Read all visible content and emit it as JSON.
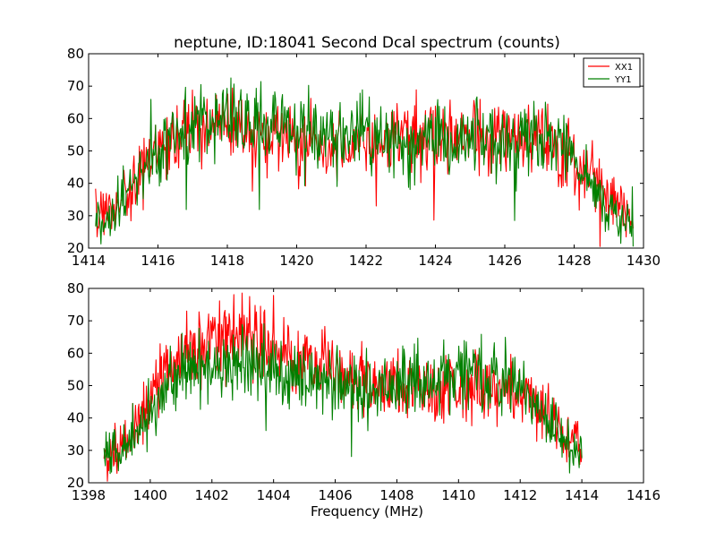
{
  "title": "neptune, ID:18041 Second Dcal spectrum (counts)",
  "chart_data": [
    {
      "type": "line",
      "title": "neptune, ID:18041 Second Dcal spectrum (counts)",
      "xlabel": "",
      "ylabel": "",
      "xlim": [
        1414,
        1430
      ],
      "ylim": [
        20,
        80
      ],
      "x_ticks": [
        "1414",
        "1416",
        "1418",
        "1420",
        "1422",
        "1424",
        "1426",
        "1428",
        "1430"
      ],
      "y_ticks": [
        "20",
        "30",
        "40",
        "50",
        "60",
        "70",
        "80"
      ],
      "x_range": [
        1414.2,
        1429.7
      ],
      "grid": false,
      "legend": "top-right",
      "series": [
        {
          "name": "XX1",
          "color": "#ff0000",
          "x": [
            1414.2,
            1414.5,
            1415.0,
            1415.5,
            1416.0,
            1416.5,
            1417.0,
            1417.5,
            1418.0,
            1418.5,
            1419.0,
            1419.5,
            1420.0,
            1420.5,
            1421.0,
            1421.5,
            1422.0,
            1422.5,
            1423.0,
            1423.5,
            1424.0,
            1424.5,
            1425.0,
            1425.5,
            1426.0,
            1426.5,
            1427.0,
            1427.5,
            1428.0,
            1428.5,
            1429.0,
            1429.5,
            1429.7
          ],
          "values": [
            30,
            31,
            36,
            43,
            50,
            53,
            56,
            57,
            57,
            56,
            55,
            54,
            54,
            53,
            53,
            53,
            53,
            53,
            54,
            54,
            54,
            54,
            54,
            54,
            54,
            54,
            55,
            53,
            48,
            42,
            35,
            30,
            29
          ]
        },
        {
          "name": "YY1",
          "color": "#008000",
          "x": [
            1414.2,
            1414.5,
            1415.0,
            1415.5,
            1416.0,
            1416.5,
            1417.0,
            1417.5,
            1418.0,
            1418.5,
            1419.0,
            1419.5,
            1420.0,
            1420.5,
            1421.0,
            1421.5,
            1422.0,
            1422.5,
            1423.0,
            1423.5,
            1424.0,
            1424.5,
            1425.0,
            1425.5,
            1426.0,
            1426.5,
            1427.0,
            1427.5,
            1428.0,
            1428.5,
            1429.0,
            1429.5,
            1429.7
          ],
          "values": [
            28,
            29,
            35,
            42,
            49,
            55,
            58,
            59,
            60,
            60,
            59,
            58,
            57,
            56,
            55,
            55,
            55,
            54,
            54,
            54,
            54,
            54,
            54,
            54,
            54,
            53,
            53,
            51,
            46,
            39,
            32,
            27,
            26
          ]
        }
      ]
    },
    {
      "type": "line",
      "title": "",
      "xlabel": "Frequency (MHz)",
      "ylabel": "",
      "xlim": [
        1398,
        1416
      ],
      "ylim": [
        20,
        80
      ],
      "x_ticks": [
        "1398",
        "1400",
        "1402",
        "1404",
        "1406",
        "1408",
        "1410",
        "1412",
        "1414",
        "1416"
      ],
      "y_ticks": [
        "20",
        "30",
        "40",
        "50",
        "60",
        "70",
        "80"
      ],
      "x_range": [
        1398.5,
        1414.0
      ],
      "grid": false,
      "legend": "none",
      "series": [
        {
          "name": "XX1",
          "color": "#ff0000",
          "x": [
            1398.5,
            1399.0,
            1399.5,
            1400.0,
            1400.5,
            1401.0,
            1401.5,
            1402.0,
            1402.5,
            1403.0,
            1403.5,
            1404.0,
            1404.5,
            1405.0,
            1405.5,
            1406.0,
            1406.5,
            1407.0,
            1407.5,
            1408.0,
            1408.5,
            1409.0,
            1409.5,
            1410.0,
            1410.5,
            1411.0,
            1411.5,
            1412.0,
            1412.5,
            1413.0,
            1413.5,
            1414.0
          ],
          "values": [
            30,
            32,
            37,
            45,
            55,
            60,
            62,
            63,
            64,
            64,
            63,
            62,
            61,
            60,
            57,
            55,
            53,
            52,
            51,
            51,
            50,
            50,
            49,
            49,
            49,
            49,
            49,
            48,
            45,
            39,
            33,
            31
          ]
        },
        {
          "name": "YY1",
          "color": "#008000",
          "x": [
            1398.5,
            1399.0,
            1399.5,
            1400.0,
            1400.5,
            1401.0,
            1401.5,
            1402.0,
            1402.5,
            1403.0,
            1403.5,
            1404.0,
            1404.5,
            1405.0,
            1405.5,
            1406.0,
            1406.5,
            1407.0,
            1407.5,
            1408.0,
            1408.5,
            1409.0,
            1409.5,
            1410.0,
            1410.5,
            1411.0,
            1411.5,
            1412.0,
            1412.5,
            1413.0,
            1413.5,
            1414.0
          ],
          "values": [
            28,
            30,
            35,
            42,
            50,
            54,
            55,
            56,
            56,
            56,
            55,
            54,
            53,
            52,
            51,
            50,
            49,
            49,
            49,
            50,
            50,
            51,
            52,
            53,
            53,
            53,
            52,
            49,
            44,
            37,
            31,
            29
          ]
        }
      ]
    }
  ]
}
